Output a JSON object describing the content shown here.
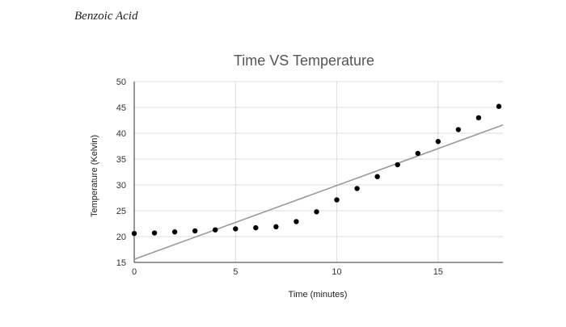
{
  "document": {
    "caption": "Benzoic Acid"
  },
  "chart_data": {
    "type": "scatter",
    "title": "Time VS Temperature",
    "xlabel": "Time (minutes)",
    "ylabel": "Temperature (Kelvin)",
    "xlim": [
      0,
      18.2
    ],
    "ylim": [
      15,
      50
    ],
    "x_ticks": [
      0,
      5,
      10,
      15
    ],
    "y_ticks": [
      15,
      20,
      25,
      30,
      35,
      40,
      45,
      50
    ],
    "grid": true,
    "series": [
      {
        "x": [
          0,
          1,
          2,
          3,
          4,
          5,
          6,
          7,
          8,
          9,
          10,
          11,
          12,
          13,
          14,
          15,
          16,
          17,
          18
        ],
        "y": [
          20.6,
          20.7,
          20.9,
          21.1,
          21.3,
          21.5,
          21.7,
          21.9,
          22.9,
          24.8,
          27.1,
          29.3,
          31.6,
          33.9,
          36.1,
          38.4,
          40.7,
          43.0,
          45.2
        ]
      }
    ],
    "trendline": {
      "x": [
        0,
        18.2
      ],
      "y": [
        15.6,
        41.6
      ]
    },
    "colors": {
      "points": "#000000",
      "trendline": "#999999",
      "grid": "#dddddd",
      "title": "#555555"
    }
  }
}
